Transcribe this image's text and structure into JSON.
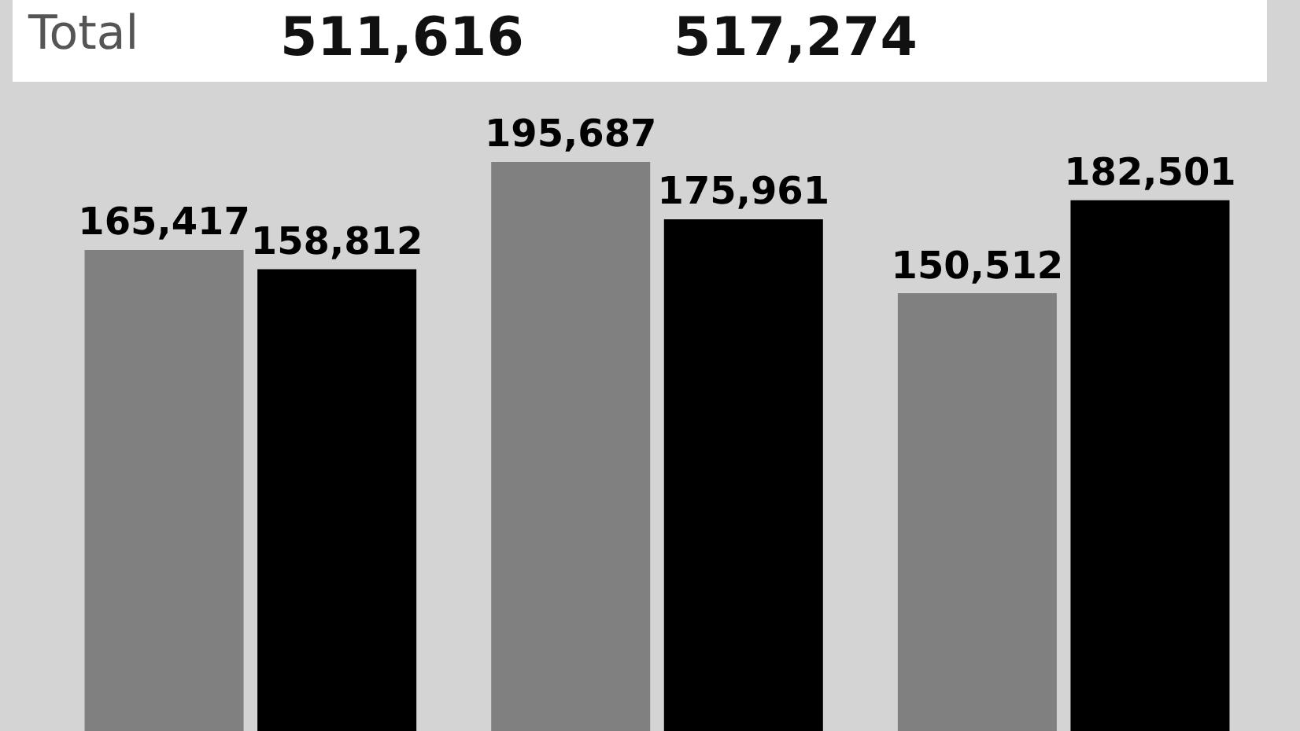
{
  "chart_data": {
    "type": "bar",
    "categories": [
      null,
      null,
      null
    ],
    "series": [
      {
        "color": "#808080",
        "values": [
          165417,
          195687,
          150512
        ],
        "value_labels": [
          "165,417",
          "195,687",
          "150,512"
        ]
      },
      {
        "color": "#000000",
        "values": [
          158812,
          175961,
          182501
        ],
        "value_labels": [
          "158,812",
          "175,961",
          "182,501"
        ]
      }
    ],
    "tick_labels": false,
    "annotations": [
      "Total",
      "511,616",
      "517,274"
    ]
  }
}
